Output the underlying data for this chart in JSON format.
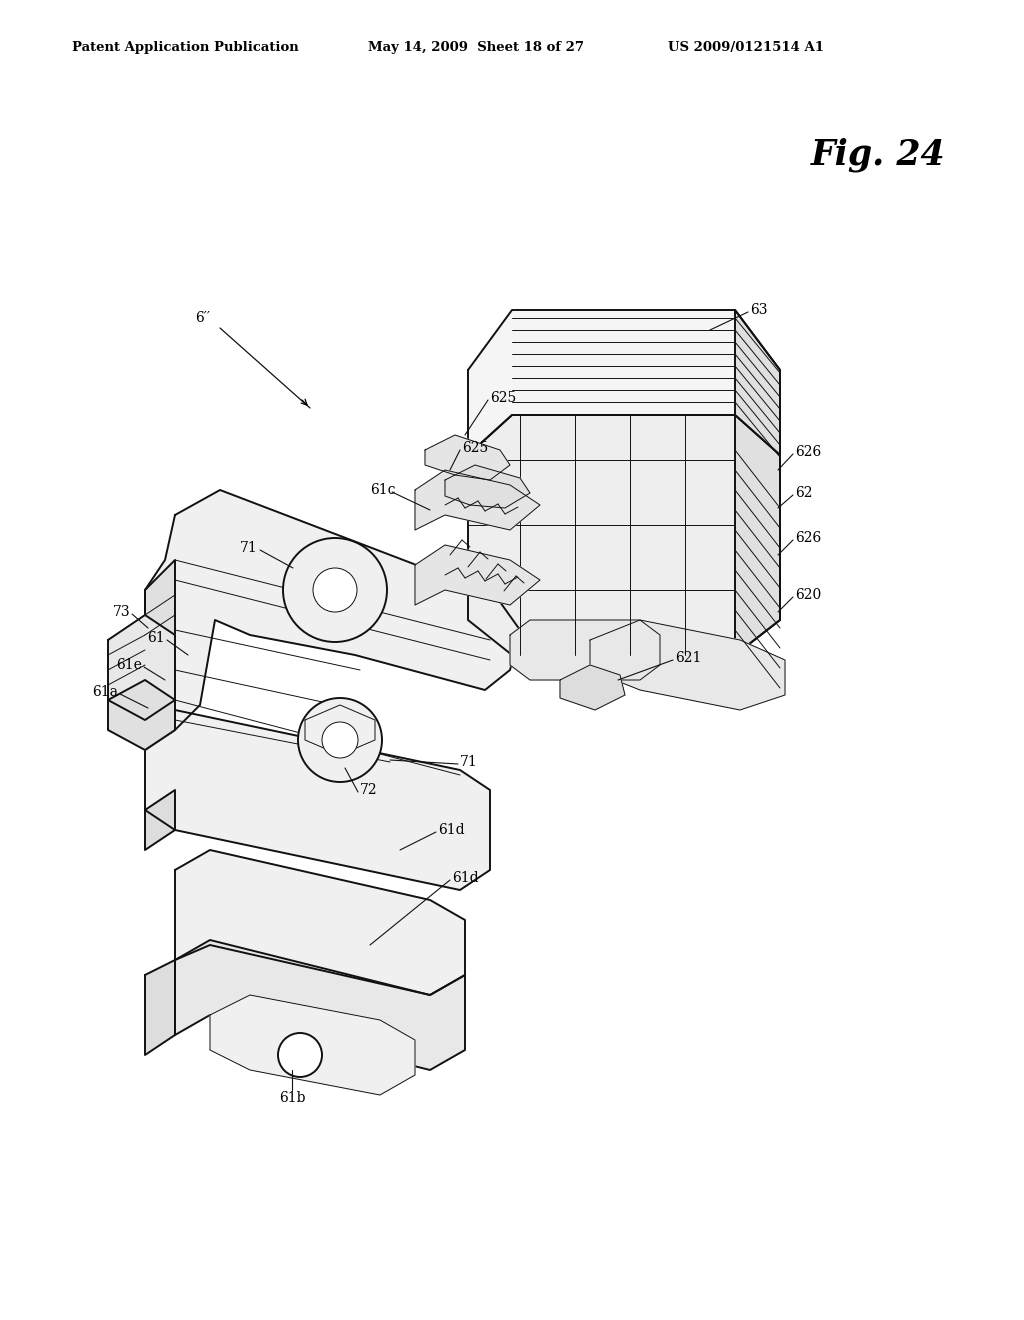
{
  "bg_color": "#ffffff",
  "header_left": "Patent Application Publication",
  "header_mid": "May 14, 2009  Sheet 18 of 27",
  "header_right": "US 2009/0121514 A1",
  "fig_label": "Fig. 24",
  "label_fontsize": 10,
  "fig_fontsize": 24,
  "header_fontsize": 9.5,
  "line_color": "#1a1a1a",
  "lw_main": 1.4,
  "lw_thin": 0.7
}
